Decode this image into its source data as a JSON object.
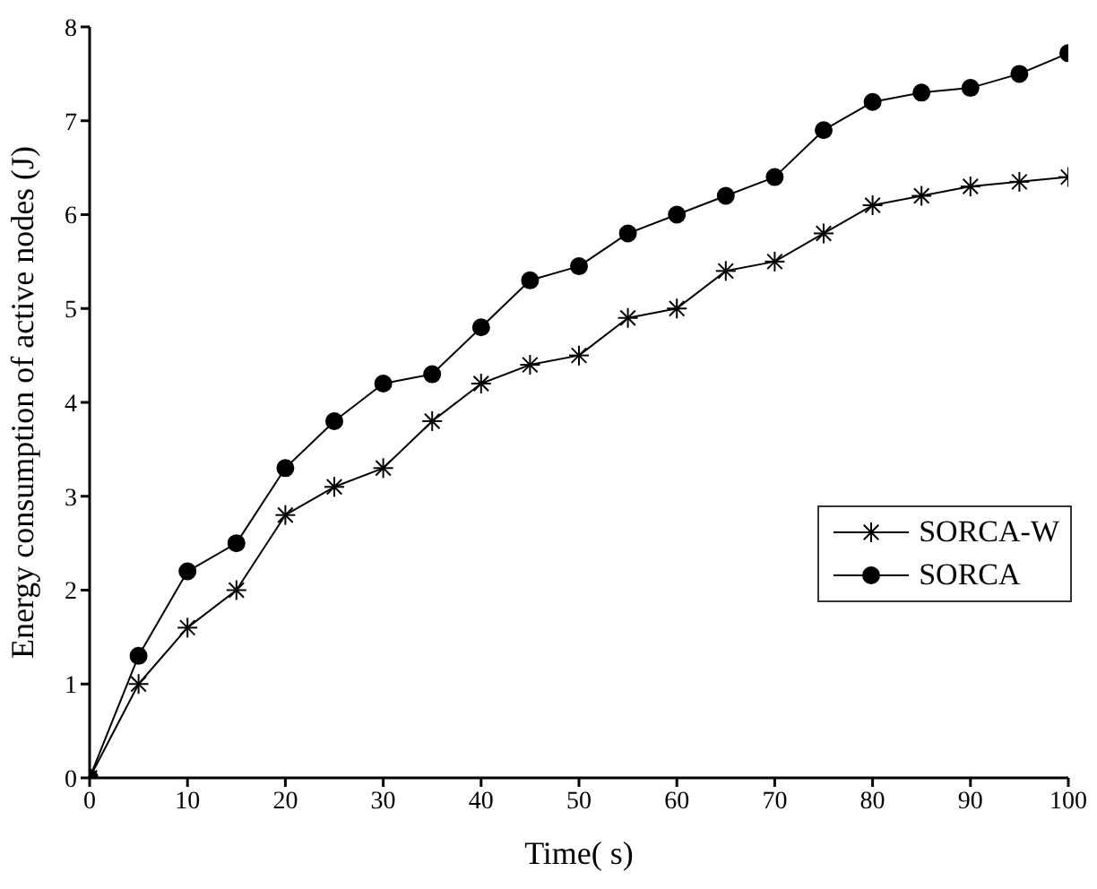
{
  "chart_data": {
    "type": "line",
    "xlabel": "Time(  s)",
    "ylabel": "Energy consumption of active nodes (J)",
    "x": [
      0,
      5,
      10,
      15,
      20,
      25,
      30,
      35,
      40,
      45,
      50,
      55,
      60,
      65,
      70,
      75,
      80,
      85,
      90,
      95,
      100
    ],
    "series": [
      {
        "name": "SORCA-W",
        "color": "#000000",
        "marker": "cross",
        "values": [
          0,
          1.0,
          1.6,
          2.0,
          2.8,
          3.1,
          3.3,
          3.8,
          4.2,
          4.4,
          4.5,
          4.9,
          5.0,
          5.4,
          5.5,
          5.8,
          6.1,
          6.2,
          6.3,
          6.35,
          6.4
        ]
      },
      {
        "name": "SORCA",
        "color": "#000000",
        "marker": "circle",
        "values": [
          0,
          1.3,
          2.2,
          2.5,
          3.3,
          3.8,
          4.2,
          4.3,
          4.8,
          5.3,
          5.45,
          5.8,
          6.0,
          6.2,
          6.4,
          6.9,
          7.2,
          7.3,
          7.35,
          7.5,
          7.72
        ]
      }
    ],
    "xlim": [
      0,
      100
    ],
    "xticks": [
      0,
      10,
      20,
      30,
      40,
      50,
      60,
      70,
      80,
      90,
      100
    ],
    "ylim": [
      0,
      8
    ],
    "yticks": [
      0,
      1,
      2,
      3,
      4,
      5,
      6,
      7,
      8
    ],
    "grid": false,
    "legend": "right",
    "line_style": "solid"
  }
}
